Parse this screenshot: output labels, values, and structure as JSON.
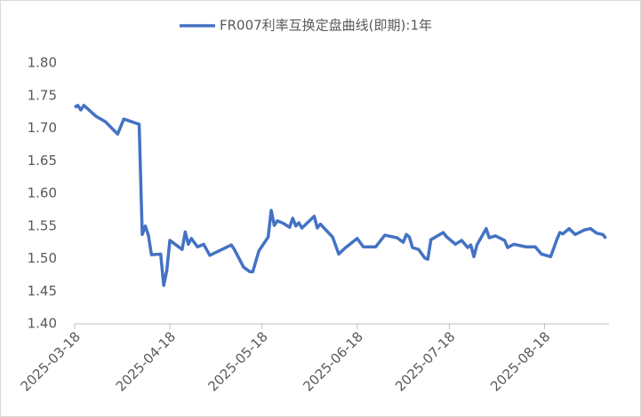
{
  "chart_data": {
    "type": "line",
    "x": [
      "2025-03-18",
      "2025-03-19",
      "2025-03-20",
      "2025-03-21",
      "2025-03-25",
      "2025-03-28",
      "2025-04-01",
      "2025-04-03",
      "2025-04-08",
      "2025-04-09",
      "2025-04-10",
      "2025-04-11",
      "2025-04-12",
      "2025-04-15",
      "2025-04-16",
      "2025-04-17",
      "2025-04-18",
      "2025-04-22",
      "2025-04-23",
      "2025-04-24",
      "2025-04-25",
      "2025-04-27",
      "2025-04-29",
      "2025-05-01",
      "2025-05-08",
      "2025-05-09",
      "2025-05-12",
      "2025-05-14",
      "2025-05-15",
      "2025-05-17",
      "2025-05-20",
      "2025-05-21",
      "2025-05-22",
      "2025-05-23",
      "2025-05-25",
      "2025-05-27",
      "2025-05-28",
      "2025-05-29",
      "2025-05-30",
      "2025-05-31",
      "2025-06-04",
      "2025-06-05",
      "2025-06-06",
      "2025-06-10",
      "2025-06-12",
      "2025-06-14",
      "2025-06-18",
      "2025-06-20",
      "2025-06-24",
      "2025-06-27",
      "2025-07-01",
      "2025-07-03",
      "2025-07-04",
      "2025-07-05",
      "2025-07-06",
      "2025-07-08",
      "2025-07-10",
      "2025-07-11",
      "2025-07-12",
      "2025-07-16",
      "2025-07-17",
      "2025-07-20",
      "2025-07-22",
      "2025-07-24",
      "2025-07-25",
      "2025-07-26",
      "2025-07-27",
      "2025-07-30",
      "2025-07-31",
      "2025-08-02",
      "2025-08-05",
      "2025-08-06",
      "2025-08-08",
      "2025-08-12",
      "2025-08-15",
      "2025-08-17",
      "2025-08-20",
      "2025-08-22",
      "2025-08-23",
      "2025-08-24",
      "2025-08-26",
      "2025-08-28",
      "2025-08-31",
      "2025-09-02",
      "2025-09-04",
      "2025-09-06",
      "2025-09-07"
    ],
    "series": [
      {
        "name": "FR007利率互换定盘曲线(即期):1年",
        "color": "#4472c4",
        "values": [
          1.732,
          1.735,
          1.728,
          1.735,
          1.718,
          1.71,
          1.691,
          1.714,
          1.706,
          1.537,
          1.55,
          1.536,
          1.506,
          1.507,
          1.459,
          1.482,
          1.528,
          1.514,
          1.541,
          1.522,
          1.531,
          1.518,
          1.522,
          1.505,
          1.521,
          1.514,
          1.487,
          1.48,
          1.48,
          1.512,
          1.533,
          1.574,
          1.551,
          1.558,
          1.554,
          1.548,
          1.562,
          1.55,
          1.555,
          1.547,
          1.565,
          1.547,
          1.553,
          1.533,
          1.507,
          1.516,
          1.531,
          1.518,
          1.518,
          1.536,
          1.532,
          1.525,
          1.537,
          1.533,
          1.517,
          1.514,
          1.501,
          1.499,
          1.529,
          1.54,
          1.534,
          1.522,
          1.528,
          1.517,
          1.521,
          1.503,
          1.521,
          1.546,
          1.532,
          1.535,
          1.528,
          1.517,
          1.522,
          1.518,
          1.518,
          1.507,
          1.503,
          1.529,
          1.54,
          1.538,
          1.546,
          1.537,
          1.544,
          1.546,
          1.539,
          1.537,
          1.531
        ]
      }
    ],
    "xlim": [
      "2025-03-18",
      "2025-09-08"
    ],
    "xticks": [
      "2025-03-18",
      "2025-04-18",
      "2025-05-18",
      "2025-06-18",
      "2025-07-18",
      "2025-08-18"
    ],
    "ylim": [
      1.4,
      1.8
    ],
    "yticks": [
      {
        "value": 1.4,
        "label": "1.40"
      },
      {
        "value": 1.45,
        "label": "1.45"
      },
      {
        "value": 1.5,
        "label": "1.50"
      },
      {
        "value": 1.55,
        "label": "1.55"
      },
      {
        "value": 1.6,
        "label": "1.60"
      },
      {
        "value": 1.65,
        "label": "1.65"
      },
      {
        "value": 1.7,
        "label": "1.70"
      },
      {
        "value": 1.75,
        "label": "1.75"
      },
      {
        "value": 1.8,
        "label": "1.80"
      }
    ],
    "grid": false,
    "legend": "top"
  }
}
